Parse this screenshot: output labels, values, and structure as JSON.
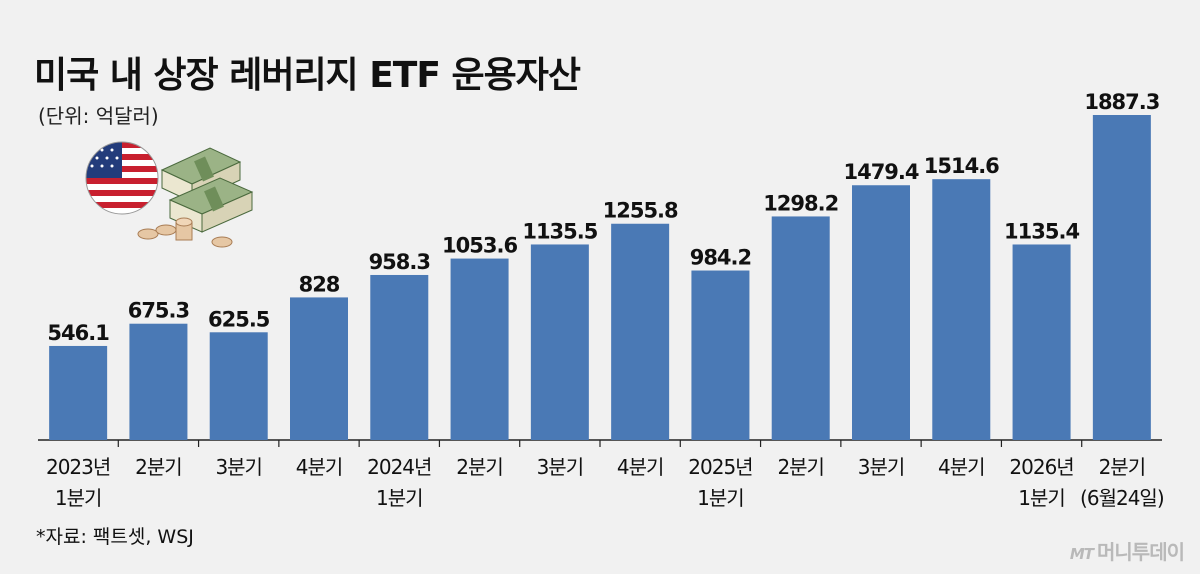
{
  "header": {
    "title": "미국 내 상장 레버리지 ETF 운용자산",
    "unit": "(단위: 억달러)"
  },
  "footer": {
    "source": "*자료: 팩트셋, WSJ",
    "brand_mt": "MT",
    "brand_name": "머니투데이"
  },
  "colors": {
    "bar": "#4a79b5",
    "background": "#f1f1f1",
    "text": "#111111"
  },
  "chart_data": {
    "type": "bar",
    "title": "미국 내 상장 레버리지 ETF 운용자산",
    "ylabel": "",
    "xlabel": "",
    "ylim": [
      0,
      2000
    ],
    "grid": false,
    "categories": [
      [
        "2023년",
        "1분기"
      ],
      [
        "2분기"
      ],
      [
        "3분기"
      ],
      [
        "4분기"
      ],
      [
        "2024년",
        "1분기"
      ],
      [
        "2분기"
      ],
      [
        "3분기"
      ],
      [
        "4분기"
      ],
      [
        "2025년",
        "1분기"
      ],
      [
        "2분기"
      ],
      [
        "3분기"
      ],
      [
        "4분기"
      ],
      [
        "2026년",
        "1분기"
      ],
      [
        "2분기",
        "(6월24일)"
      ]
    ],
    "values": [
      546.1,
      675.3,
      625.5,
      828,
      958.3,
      1053.6,
      1135.5,
      1255.8,
      984.2,
      1298.2,
      1479.4,
      1514.6,
      1135.4,
      1887.3
    ],
    "value_labels": [
      "546.1",
      "675.3",
      "625.5",
      "828",
      "958.3",
      "1053.6",
      "1135.5",
      "1255.8",
      "984.2",
      "1298.2",
      "1479.4",
      "1514.6",
      "1135.4",
      "1887.3"
    ]
  }
}
